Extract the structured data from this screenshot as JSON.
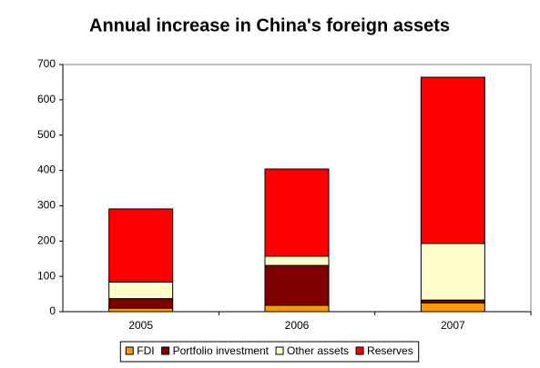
{
  "chart_data": {
    "type": "stacked_bar",
    "title": "Annual increase in China's foreign assets",
    "categories": [
      "2005",
      "2006",
      "2007"
    ],
    "series": [
      {
        "name": "FDI",
        "color": "#ff9900",
        "values": [
          10,
          18,
          25
        ]
      },
      {
        "name": "Portfolio investment",
        "color": "#800000",
        "values": [
          27,
          113,
          8
        ]
      },
      {
        "name": "Other assets",
        "color": "#ffffcc",
        "values": [
          47,
          26,
          160
        ]
      },
      {
        "name": "Reserves",
        "color": "#ff0000",
        "values": [
          207,
          247,
          471
        ]
      }
    ],
    "ylim": [
      0,
      700
    ],
    "yticks": [
      0,
      100,
      200,
      300,
      400,
      500,
      600,
      700
    ],
    "grid": false,
    "legend": "bottom"
  }
}
